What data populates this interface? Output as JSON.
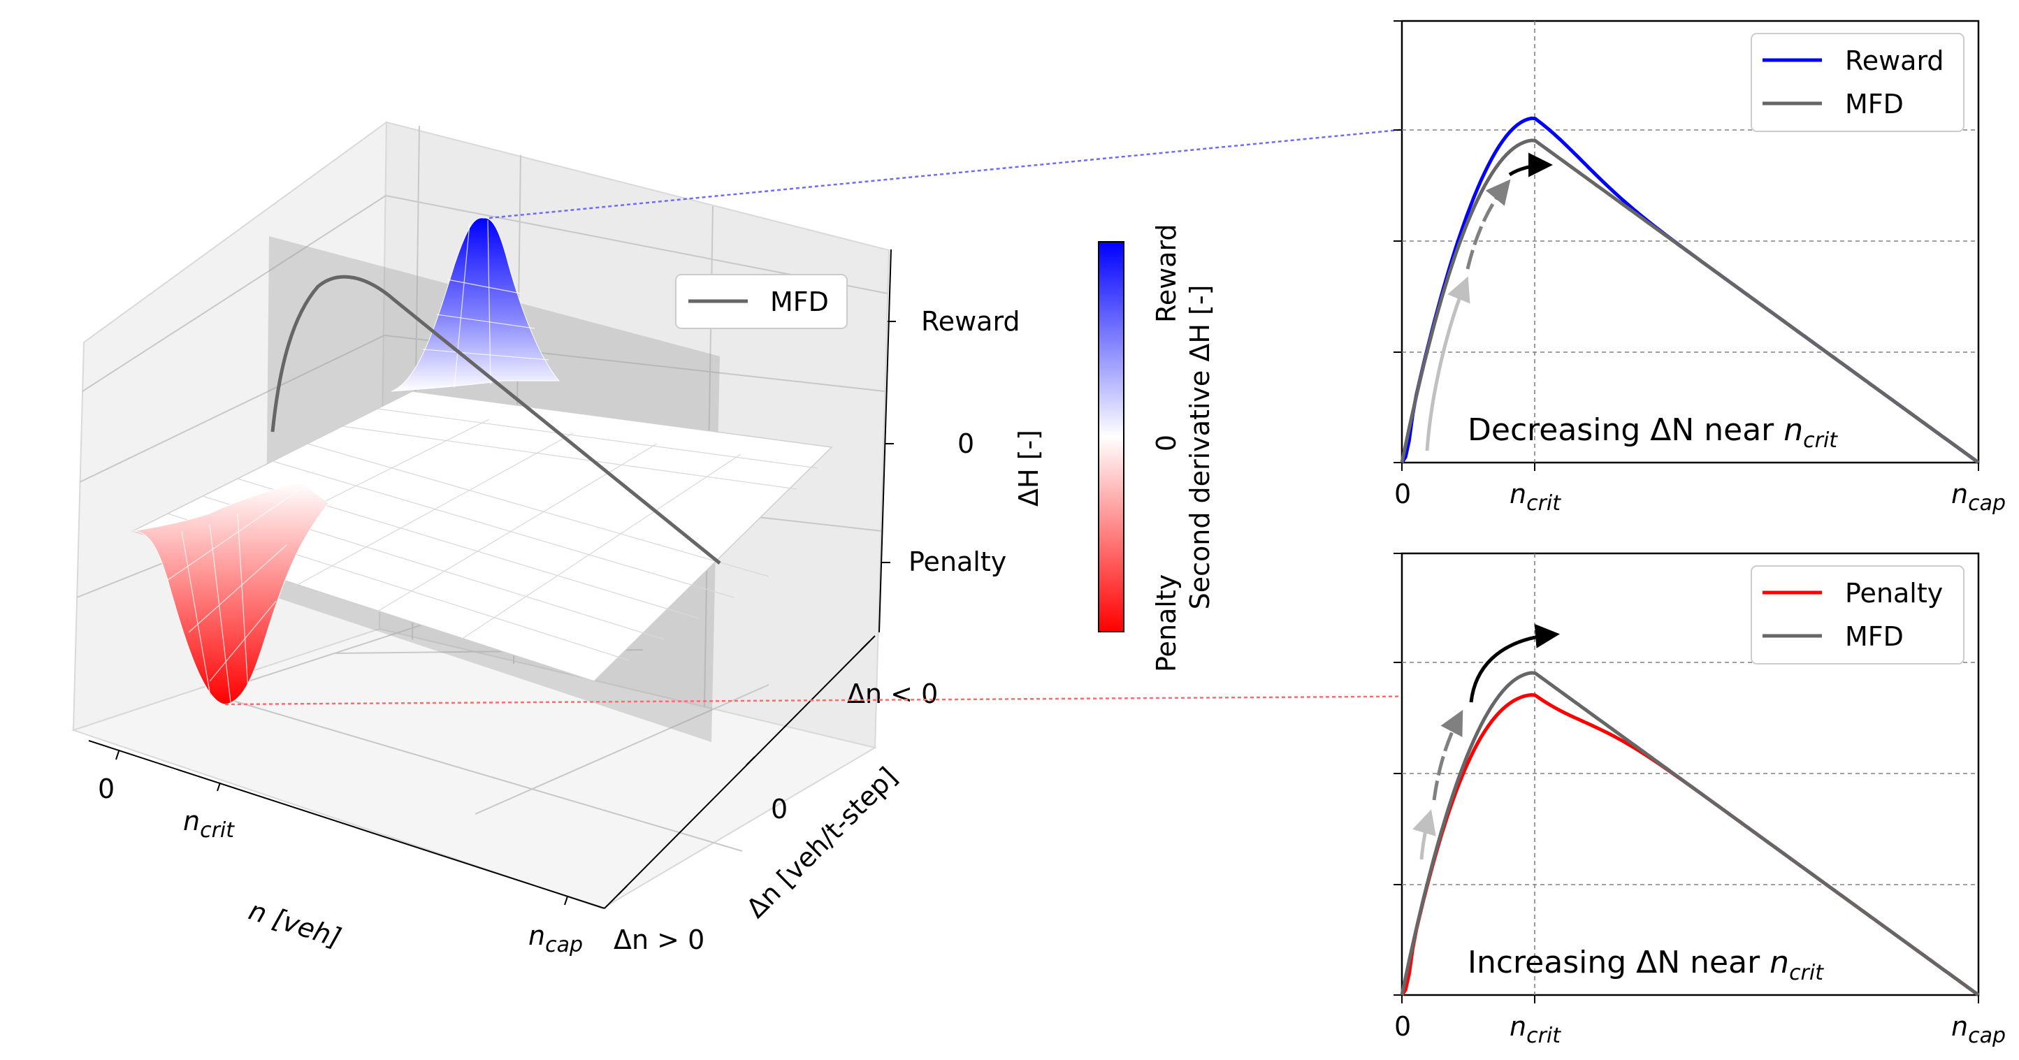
{
  "figure": {
    "panel3d": {
      "legend": "MFD",
      "x_axis_label": "n [veh]",
      "x_ticks": {
        "zero": "0",
        "crit_base": "n",
        "crit_sub": "crit",
        "cap_base": "n",
        "cap_sub": "cap"
      },
      "y_axis_label": "Δn [veh/t-step]",
      "y_ticks": {
        "neg": "Δn < 0",
        "zero": "0",
        "pos": "Δn > 0"
      },
      "z_axis_label": "ΔH [-]",
      "z_ticks": {
        "reward": "Reward",
        "zero": "0",
        "penalty": "Penalty"
      }
    },
    "colorbar": {
      "label_line1": "Second derivative ΔH [-]",
      "top_label": "Reward",
      "mid_label": "0",
      "bottom_label": "Penalty",
      "colors": {
        "top": "#0000ff",
        "mid": "#ffffff",
        "bottom": "#ff0000"
      }
    },
    "panel_top": {
      "legend": [
        "Reward",
        "MFD"
      ],
      "annotation_prefix": "Decreasing ΔN near ",
      "annotation_var_base": "n",
      "annotation_var_sub": "crit",
      "x_ticks": {
        "zero": "0",
        "crit_base": "n",
        "crit_sub": "crit",
        "cap_base": "n",
        "cap_sub": "cap"
      }
    },
    "panel_bottom": {
      "legend": [
        "Penalty",
        "MFD"
      ],
      "annotation_prefix": "Increasing ΔN near ",
      "annotation_var_base": "n",
      "annotation_var_sub": "crit",
      "x_ticks": {
        "zero": "0",
        "crit_base": "n",
        "crit_sub": "crit",
        "cap_base": "n",
        "cap_sub": "cap"
      }
    },
    "colors": {
      "reward": "#0000ff",
      "penalty": "#ff0000",
      "mfd": "#666666",
      "connector_reward": "#6b6bff",
      "connector_penalty": "#ff6b6b"
    }
  },
  "chart_data": [
    {
      "type": "line",
      "title": "Decreasing ΔN near n_crit",
      "xlabel": "",
      "ylabel": "",
      "xlim": [
        0,
        1
      ],
      "ylim": [
        0,
        1.0
      ],
      "x_tick_labels": [
        "0",
        "n_crit",
        "n_cap"
      ],
      "x_tick_positions": [
        0,
        0.23,
        1
      ],
      "series": [
        {
          "name": "Reward",
          "n_crit": 0.23,
          "peak": 0.78,
          "bump": 0.05
        },
        {
          "name": "MFD",
          "n_crit": 0.23,
          "peak": 0.73
        }
      ],
      "arrows": "capacity trajectory approaching n_crit (light gray → gray → black)"
    },
    {
      "type": "line",
      "title": "Increasing ΔN near n_crit",
      "xlabel": "",
      "ylabel": "",
      "xlim": [
        0,
        1
      ],
      "ylim": [
        0,
        1.0
      ],
      "x_tick_labels": [
        "0",
        "n_crit",
        "n_cap"
      ],
      "x_tick_positions": [
        0,
        0.23,
        1
      ],
      "series": [
        {
          "name": "Penalty",
          "n_crit": 0.23,
          "peak": 0.68,
          "bump": -0.05
        },
        {
          "name": "MFD",
          "n_crit": 0.23,
          "peak": 0.73
        }
      ],
      "arrows": "capacity trajectory approaching n_crit (light gray → gray → black)"
    }
  ]
}
